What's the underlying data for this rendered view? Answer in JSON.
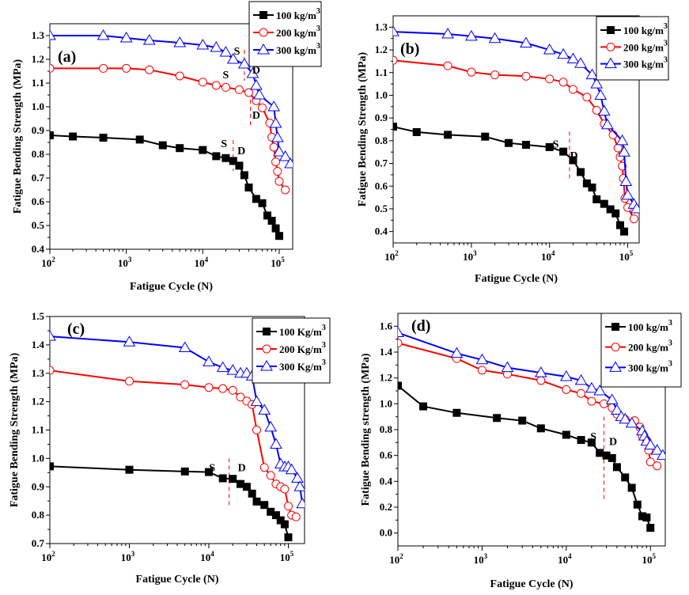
{
  "chart_data": [
    {
      "type": "line",
      "panel_label": "(a)",
      "title": "",
      "xlabel": "Fatigue Cycle (N)",
      "ylabel": "Fatigue Bending Strength (MPa)",
      "xscale": "log",
      "xlim": [
        100,
        150000
      ],
      "ylim": [
        0.4,
        1.35
      ],
      "xticks": [
        {
          "v": 100,
          "base": "10",
          "exp": "2"
        },
        {
          "v": 1000,
          "base": "10",
          "exp": "3"
        },
        {
          "v": 10000,
          "base": "10",
          "exp": "4"
        },
        {
          "v": 100000,
          "base": "10",
          "exp": "5"
        }
      ],
      "yticks": [
        "0.4",
        "0.5",
        "0.6",
        "0.7",
        "0.8",
        "0.9",
        "1.0",
        "1.1",
        "1.2",
        "1.3"
      ],
      "grid": false,
      "legend_position": "top-right-outside",
      "series": [
        {
          "name": "100 kg/m",
          "sup": "3",
          "color": "#000000",
          "marker": "square",
          "x": [
            100,
            200,
            500,
            1500,
            3000,
            5000,
            10000,
            15000,
            20000,
            25000,
            30000,
            35000,
            40000,
            50000,
            60000,
            70000,
            80000,
            90000,
            100000
          ],
          "y": [
            0.88,
            0.875,
            0.87,
            0.862,
            0.838,
            0.826,
            0.818,
            0.792,
            0.784,
            0.772,
            0.752,
            0.712,
            0.66,
            0.612,
            0.594,
            0.542,
            0.52,
            0.488,
            0.456
          ]
        },
        {
          "name": "200 kg/m",
          "sup": "3",
          "color": "#ff0000",
          "marker": "circle",
          "x": [
            100,
            500,
            1000,
            2000,
            5000,
            10000,
            15000,
            20000,
            30000,
            40000,
            50000,
            60000,
            75000,
            80000,
            85000,
            90000,
            95000,
            100000,
            120000
          ],
          "y": [
            1.162,
            1.162,
            1.162,
            1.156,
            1.13,
            1.104,
            1.09,
            1.082,
            1.072,
            1.06,
            1.026,
            0.996,
            0.932,
            0.872,
            0.83,
            0.768,
            0.728,
            0.686,
            0.65
          ]
        },
        {
          "name": "300 kg/m",
          "sup": "3",
          "color": "#0000ff",
          "marker": "triangle",
          "x": [
            100,
            500,
            1000,
            2000,
            5000,
            10000,
            15000,
            20000,
            25000,
            35000,
            45000,
            50000,
            55000,
            85000,
            90000,
            95000,
            100000,
            120000,
            140000
          ],
          "y": [
            1.3,
            1.3,
            1.29,
            1.28,
            1.27,
            1.26,
            1.25,
            1.23,
            1.2,
            1.18,
            1.14,
            1.09,
            1.05,
            1.0,
            0.93,
            0.87,
            0.81,
            0.79,
            0.76
          ]
        }
      ],
      "annotations": [
        {
          "text": "S",
          "x": 28000,
          "y": 1.22,
          "big": false
        },
        {
          "text": "S",
          "x": 20000,
          "y": 1.12,
          "big": true
        },
        {
          "text": "D",
          "x": 50000,
          "y": 1.14,
          "big": false
        },
        {
          "text": "D",
          "x": 50000,
          "y": 0.95,
          "big": false
        },
        {
          "text": "S",
          "x": 19000,
          "y": 0.83,
          "big": false
        },
        {
          "text": "D",
          "x": 32000,
          "y": 0.8,
          "big": false
        }
      ],
      "dashed_lines": [
        {
          "x": 35000,
          "y1": 1.24,
          "y2": 1.11
        },
        {
          "x": 42000,
          "y1": 1.06,
          "y2": 0.92
        },
        {
          "x": 25000,
          "y1": 0.86,
          "y2": 0.73
        }
      ]
    },
    {
      "type": "line",
      "panel_label": "(b)",
      "title": "",
      "xlabel": "Fatigue Cycle (N)",
      "ylabel": "Fatigue Bending Strength (MPa)",
      "xscale": "log",
      "xlim": [
        100,
        140000
      ],
      "ylim": [
        0.35,
        1.35
      ],
      "xticks": [
        {
          "v": 100,
          "base": "10",
          "exp": "2"
        },
        {
          "v": 1000,
          "base": "10",
          "exp": "3"
        },
        {
          "v": 10000,
          "base": "10",
          "exp": "4"
        },
        {
          "v": 100000,
          "base": "10",
          "exp": "5"
        }
      ],
      "yticks": [
        "0.4",
        "0.5",
        "0.6",
        "0.7",
        "0.8",
        "0.9",
        "1.0",
        "1.1",
        "1.2",
        "1.3"
      ],
      "grid": false,
      "legend_position": "top-right-outside",
      "series": [
        {
          "name": "100 kg/m",
          "sup": "3",
          "color": "#000000",
          "marker": "square",
          "x": [
            100,
            200,
            500,
            1500,
            3000,
            5000,
            10000,
            15000,
            20000,
            25000,
            30000,
            35000,
            40000,
            50000,
            60000,
            70000,
            80000,
            90000
          ],
          "y": [
            0.862,
            0.838,
            0.826,
            0.818,
            0.79,
            0.782,
            0.772,
            0.752,
            0.714,
            0.662,
            0.612,
            0.594,
            0.542,
            0.522,
            0.498,
            0.48,
            0.428,
            0.4
          ]
        },
        {
          "name": "200 kg/m",
          "sup": "3",
          "color": "#ff0000",
          "marker": "circle",
          "x": [
            100,
            500,
            1000,
            2000,
            5000,
            10000,
            15000,
            20000,
            30000,
            40000,
            50000,
            65000,
            75000,
            80000,
            85000,
            88000,
            92000,
            100000,
            120000
          ],
          "y": [
            1.154,
            1.13,
            1.102,
            1.09,
            1.084,
            1.072,
            1.058,
            1.026,
            0.992,
            0.934,
            0.874,
            0.826,
            0.768,
            0.728,
            0.688,
            0.634,
            0.546,
            0.506,
            0.456
          ]
        },
        {
          "name": "300 kg/m",
          "sup": "3",
          "color": "#0000ff",
          "marker": "triangle",
          "x": [
            100,
            500,
            1000,
            2000,
            5000,
            10000,
            15000,
            20000,
            25000,
            35000,
            40000,
            45000,
            50000,
            55000,
            85000,
            90000,
            95000,
            100000,
            120000,
            130000
          ],
          "y": [
            1.28,
            1.27,
            1.26,
            1.25,
            1.23,
            1.2,
            1.18,
            1.16,
            1.14,
            1.09,
            1.05,
            1.0,
            0.93,
            0.87,
            0.8,
            0.75,
            0.62,
            0.56,
            0.52,
            0.5
          ]
        }
      ],
      "annotations": [
        {
          "text": "S",
          "x": 12000,
          "y": 0.77,
          "big": false
        },
        {
          "text": "D",
          "x": 20500,
          "y": 0.72,
          "big": false
        }
      ],
      "dashed_lines": [
        {
          "x": 18000,
          "y1": 0.84,
          "y2": 0.62
        }
      ]
    },
    {
      "type": "line",
      "panel_label": "(c)",
      "title": "",
      "xlabel": "Fatigue Cycle (N)",
      "ylabel": "Fatigue Bending Strength (MPa)",
      "xscale": "log",
      "xlim": [
        100,
        160000
      ],
      "ylim": [
        0.7,
        1.5
      ],
      "xticks": [
        {
          "v": 100,
          "base": "10",
          "exp": "2"
        },
        {
          "v": 1000,
          "base": "10",
          "exp": "3"
        },
        {
          "v": 10000,
          "base": "10",
          "exp": "4"
        },
        {
          "v": 100000,
          "base": "10",
          "exp": "5"
        }
      ],
      "yticks": [
        "0.7",
        "0.8",
        "0.9",
        "1.0",
        "1.1",
        "1.2",
        "1.3",
        "1.4",
        "1.5"
      ],
      "grid": false,
      "legend_position": "top-right",
      "series": [
        {
          "name": "100 Kg/m",
          "sup": "3",
          "color": "#000000",
          "marker": "square",
          "x": [
            100,
            1000,
            5000,
            10000,
            15000,
            20000,
            25000,
            30000,
            35000,
            40000,
            50000,
            60000,
            70000,
            80000,
            90000,
            100000
          ],
          "y": [
            0.972,
            0.96,
            0.954,
            0.952,
            0.93,
            0.928,
            0.91,
            0.9,
            0.876,
            0.848,
            0.836,
            0.812,
            0.8,
            0.782,
            0.768,
            0.722
          ]
        },
        {
          "name": "200 Kg/m",
          "sup": "3",
          "color": "#ff0000",
          "marker": "circle",
          "x": [
            100,
            1000,
            5000,
            10000,
            15000,
            20000,
            25000,
            30000,
            35000,
            40000,
            50000,
            60000,
            70000,
            80000,
            90000,
            100000,
            110000,
            125000
          ],
          "y": [
            1.31,
            1.272,
            1.26,
            1.25,
            1.246,
            1.24,
            1.216,
            1.202,
            1.19,
            1.1,
            0.968,
            0.94,
            0.91,
            0.9,
            0.892,
            0.832,
            0.8,
            0.794
          ]
        },
        {
          "name": "300 Kg/m",
          "sup": "3",
          "color": "#0000ff",
          "marker": "triangle",
          "x": [
            100,
            1000,
            5000,
            10000,
            15000,
            20000,
            25000,
            30000,
            35000,
            40000,
            50000,
            60000,
            70000,
            80000,
            90000,
            100000,
            110000,
            130000,
            140000,
            150000
          ],
          "y": [
            1.43,
            1.41,
            1.39,
            1.34,
            1.32,
            1.31,
            1.3,
            1.3,
            1.29,
            1.2,
            1.17,
            1.11,
            1.05,
            0.98,
            0.97,
            0.97,
            0.96,
            0.93,
            0.9,
            0.84
          ]
        }
      ],
      "annotations": [
        {
          "text": "S",
          "x": 11000,
          "y": 0.955,
          "big": false
        },
        {
          "text": "D",
          "x": 26000,
          "y": 0.955,
          "big": false
        }
      ],
      "dashed_lines": [
        {
          "x": 18000,
          "y1": 1.0,
          "y2": 0.83
        }
      ]
    },
    {
      "type": "line",
      "panel_label": "(d)",
      "title": "",
      "xlabel": "Fatigue Cycle (N)",
      "ylabel": "Fatigue Bending strength (MPa)",
      "xscale": "log",
      "xlim": [
        100,
        150000
      ],
      "ylim": [
        -0.1,
        1.7
      ],
      "xticks": [
        {
          "v": 100,
          "base": "10",
          "exp": "2"
        },
        {
          "v": 1000,
          "base": "10",
          "exp": "3"
        },
        {
          "v": 10000,
          "base": "10",
          "exp": "4"
        },
        {
          "v": 100000,
          "base": "10",
          "exp": "5"
        }
      ],
      "yticks": [
        "0.0",
        "0.2",
        "0.4",
        "0.6",
        "0.8",
        "1.0",
        "1.2",
        "1.4",
        "1.6"
      ],
      "grid": false,
      "legend_position": "top-right-outside",
      "series": [
        {
          "name": "100 kg/m",
          "sup": "3",
          "color": "#000000",
          "marker": "square",
          "x": [
            100,
            200,
            500,
            1500,
            3000,
            5000,
            10000,
            15000,
            20000,
            25000,
            30000,
            35000,
            40000,
            50000,
            60000,
            70000,
            80000,
            90000,
            100000
          ],
          "y": [
            1.14,
            0.98,
            0.93,
            0.89,
            0.87,
            0.81,
            0.76,
            0.72,
            0.7,
            0.62,
            0.6,
            0.58,
            0.51,
            0.43,
            0.35,
            0.22,
            0.13,
            0.12,
            0.04
          ]
        },
        {
          "name": "200 kg/m",
          "sup": "3",
          "color": "#ff0000",
          "marker": "circle",
          "x": [
            100,
            500,
            1000,
            2000,
            5000,
            10000,
            15000,
            20000,
            28000,
            35000,
            40000,
            50000,
            65000,
            75000,
            80000,
            90000,
            95000,
            100000,
            120000
          ],
          "y": [
            1.47,
            1.35,
            1.26,
            1.23,
            1.18,
            1.11,
            1.08,
            1.02,
            1.0,
            0.97,
            0.92,
            0.88,
            0.87,
            0.82,
            0.75,
            0.72,
            0.64,
            0.55,
            0.52
          ]
        },
        {
          "name": "300 kg/m",
          "sup": "3",
          "color": "#0000ff",
          "marker": "triangle",
          "x": [
            100,
            500,
            1000,
            2000,
            5000,
            10000,
            15000,
            20000,
            25000,
            35000,
            40000,
            45000,
            50000,
            60000,
            80000,
            85000,
            90000,
            100000,
            120000,
            140000
          ],
          "y": [
            1.55,
            1.39,
            1.34,
            1.28,
            1.24,
            1.21,
            1.18,
            1.12,
            1.1,
            1.03,
            0.95,
            0.9,
            0.88,
            0.85,
            0.79,
            0.75,
            0.71,
            0.68,
            0.64,
            0.6
          ]
        }
      ],
      "annotations": [
        {
          "text": "S",
          "x": 21000,
          "y": 0.72,
          "big": false
        },
        {
          "text": "D",
          "x": 36000,
          "y": 0.68,
          "big": false
        }
      ],
      "dashed_lines": [
        {
          "x": 28000,
          "y1": 0.9,
          "y2": 0.26
        }
      ]
    }
  ]
}
